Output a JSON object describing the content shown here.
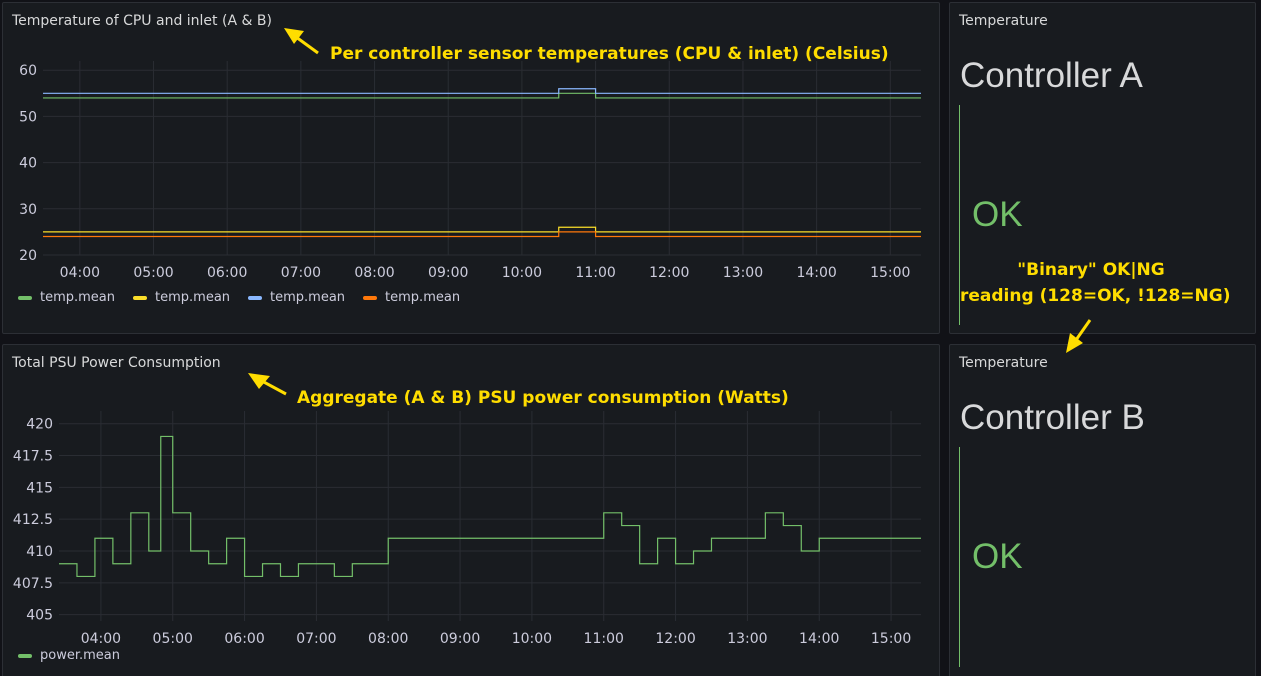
{
  "colors": {
    "green": "#73bf69",
    "yellow": "#fade2a",
    "blue": "#8ab8ff",
    "orange": "#ff780a",
    "annotation": "#ffdd00"
  },
  "panels": {
    "cpu_temp": {
      "title": "Temperature of CPU and inlet (A & B)"
    },
    "psu_power": {
      "title": "Total PSU Power Consumption"
    },
    "ctrl_a": {
      "title": "Temperature",
      "name": "Controller A",
      "value": "OK"
    },
    "ctrl_b": {
      "title": "Temperature",
      "name": "Controller B",
      "value": "OK"
    }
  },
  "annotations": {
    "temps": "Per controller sensor temperatures (CPU & inlet) (Celsius)",
    "power": "Aggregate (A & B) PSU power consumption (Watts)",
    "binary_line1": "\"Binary\" OK|NG",
    "binary_line2": "reading (128=OK, !128=NG)"
  },
  "chart_data": [
    {
      "type": "line",
      "title": "Temperature of CPU and inlet (A & B)",
      "x": [
        "03:30",
        "04:00",
        "04:30",
        "05:00",
        "05:30",
        "06:00",
        "06:30",
        "07:00",
        "07:30",
        "08:00",
        "08:30",
        "09:00",
        "09:30",
        "10:00",
        "10:30",
        "11:00",
        "11:30",
        "12:00",
        "12:30",
        "13:00",
        "13:30",
        "14:00",
        "14:30",
        "15:00",
        "15:25"
      ],
      "x_ticks": [
        "04:00",
        "05:00",
        "06:00",
        "07:00",
        "08:00",
        "09:00",
        "10:00",
        "11:00",
        "12:00",
        "13:00",
        "14:00",
        "15:00"
      ],
      "ylim": [
        20,
        62
      ],
      "y_ticks": [
        20,
        30,
        40,
        50,
        60
      ],
      "series": [
        {
          "name": "temp.mean",
          "color": "#73bf69",
          "values": [
            54,
            54,
            54,
            54,
            54,
            54,
            54,
            54,
            54,
            54,
            54,
            54,
            54,
            54,
            55,
            54,
            54,
            54,
            54,
            54,
            54,
            54,
            54,
            54,
            54
          ]
        },
        {
          "name": "temp.mean",
          "color": "#fade2a",
          "values": [
            25,
            25,
            25,
            25,
            25,
            25,
            25,
            25,
            25,
            25,
            25,
            25,
            25,
            25,
            26,
            25,
            25,
            25,
            25,
            25,
            25,
            25,
            25,
            25,
            25
          ]
        },
        {
          "name": "temp.mean",
          "color": "#8ab8ff",
          "values": [
            55,
            55,
            55,
            55,
            55,
            55,
            55,
            55,
            55,
            55,
            55,
            55,
            55,
            55,
            56,
            55,
            55,
            55,
            55,
            55,
            55,
            55,
            55,
            55,
            55
          ]
        },
        {
          "name": "temp.mean",
          "color": "#ff780a",
          "values": [
            24,
            24,
            24,
            24,
            24,
            24,
            24,
            24,
            24,
            24,
            24,
            24,
            24,
            24,
            25,
            24,
            24,
            24,
            24,
            24,
            24,
            24,
            24,
            24,
            24
          ]
        }
      ]
    },
    {
      "type": "line",
      "title": "Total PSU Power Consumption",
      "x": [
        "03:25",
        "03:40",
        "03:55",
        "04:10",
        "04:25",
        "04:40",
        "04:50",
        "05:00",
        "05:15",
        "05:30",
        "05:45",
        "06:00",
        "06:15",
        "06:30",
        "06:45",
        "07:00",
        "07:15",
        "07:30",
        "07:45",
        "08:00",
        "08:30",
        "09:00",
        "09:30",
        "10:00",
        "10:30",
        "11:00",
        "11:15",
        "11:30",
        "11:45",
        "12:00",
        "12:15",
        "12:30",
        "13:00",
        "13:15",
        "13:30",
        "13:45",
        "14:00",
        "14:30",
        "15:00",
        "15:25"
      ],
      "x_ticks": [
        "04:00",
        "05:00",
        "06:00",
        "07:00",
        "08:00",
        "09:00",
        "10:00",
        "11:00",
        "12:00",
        "13:00",
        "14:00",
        "15:00"
      ],
      "ylim": [
        404.5,
        421
      ],
      "y_ticks": [
        405,
        407.5,
        410,
        412.5,
        415,
        417.5,
        420
      ],
      "series": [
        {
          "name": "power.mean",
          "color": "#73bf69",
          "values": [
            409,
            408,
            411,
            409,
            413,
            410,
            419,
            413,
            410,
            409,
            411,
            408,
            409,
            408,
            409,
            409,
            408,
            409,
            409,
            411,
            411,
            411,
            411,
            411,
            411,
            413,
            412,
            409,
            411,
            409,
            410,
            411,
            411,
            413,
            412,
            410,
            411,
            411,
            411,
            411
          ]
        }
      ]
    }
  ]
}
